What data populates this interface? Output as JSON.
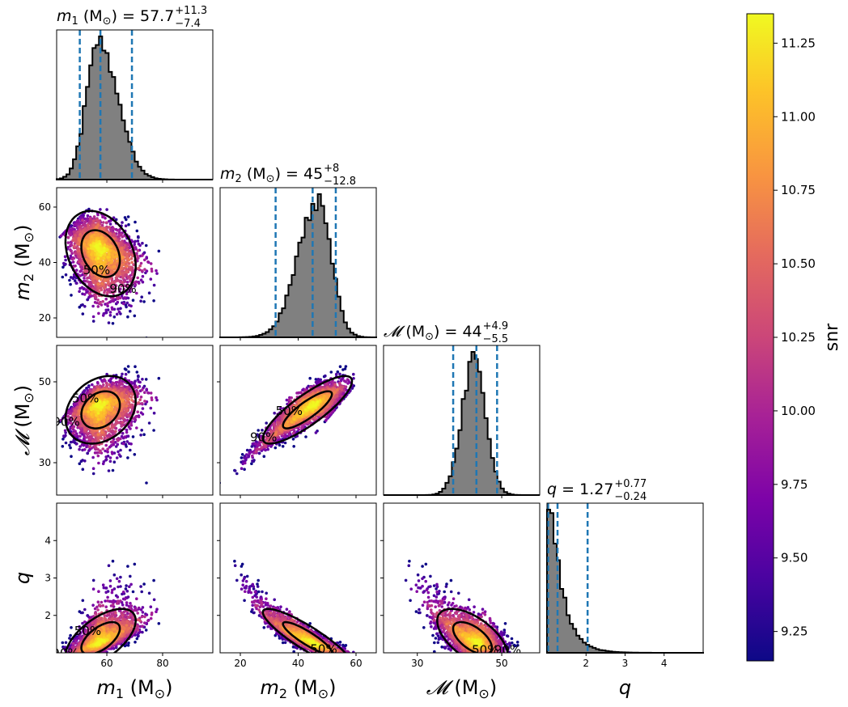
{
  "chart_data": {
    "type": "corner",
    "parameters": [
      {
        "key": "m1",
        "symbol": "m",
        "sub": "1",
        "unit": "(M",
        "unit_sub": "⊙",
        "unit_close": ")",
        "range": [
          42,
          98
        ],
        "ticks": [
          60,
          80
        ],
        "title": {
          "value": "57.7",
          "plus": "+11.3",
          "minus": "−7.4"
        },
        "median": 57.7,
        "lo": 50.3,
        "hi": 69.0,
        "hist_mode": 57,
        "hist_sigma_lo": 4.3,
        "hist_sigma_hi": 6.8
      },
      {
        "key": "m2",
        "symbol": "m",
        "sub": "2",
        "unit": "(M",
        "unit_sub": "⊙",
        "unit_close": ")",
        "range": [
          13,
          67
        ],
        "ticks": [
          20,
          40,
          60
        ],
        "title": {
          "value": "45",
          "plus": "+8",
          "minus": "−12.8"
        },
        "median": 45,
        "lo": 32.2,
        "hi": 53.0,
        "hist_mode": 47,
        "hist_sigma_lo": 7.0,
        "hist_sigma_hi": 4.5
      },
      {
        "key": "chirp",
        "symbol": "𝓜",
        "sub": "",
        "unit": "(M",
        "unit_sub": "⊙",
        "unit_close": ")",
        "range": [
          22,
          59
        ],
        "ticks": [
          30,
          50
        ],
        "title": {
          "value": "44",
          "plus": "+4.9",
          "minus": "−5.5"
        },
        "median": 44,
        "lo": 38.5,
        "hi": 48.9,
        "hist_mode": 43.5,
        "hist_sigma_lo": 2.9,
        "hist_sigma_hi": 2.7
      },
      {
        "key": "q",
        "symbol": "q",
        "sub": "",
        "unit": "",
        "unit_sub": "",
        "unit_close": "",
        "range": [
          1,
          5
        ],
        "ticks": [
          2,
          3,
          4
        ],
        "title": {
          "value": "1.27",
          "plus": "+0.77",
          "minus": "−0.24"
        },
        "median": 1.27,
        "lo": 1.03,
        "hi": 2.04,
        "hist_mode": 1.1,
        "hist_sigma_lo": 0.15,
        "hist_sigma_hi": 0.45
      }
    ],
    "y_ticks": {
      "m2": [
        20,
        40,
        60
      ],
      "chirp": [
        30,
        50
      ],
      "q": [
        2,
        3,
        4
      ]
    },
    "contour_levels": [
      "50%",
      "90%"
    ],
    "colorbar": {
      "label": "snr",
      "min": 9.15,
      "max": 11.35,
      "ticks": [
        9.25,
        9.5,
        9.75,
        10.0,
        10.25,
        10.5,
        10.75,
        11.0,
        11.25
      ],
      "colormap": "plasma"
    },
    "colors": {
      "hist_fill": "#808080",
      "quantile_line": "#1f77b4",
      "contour": "#000000",
      "axes": "#000000"
    }
  }
}
